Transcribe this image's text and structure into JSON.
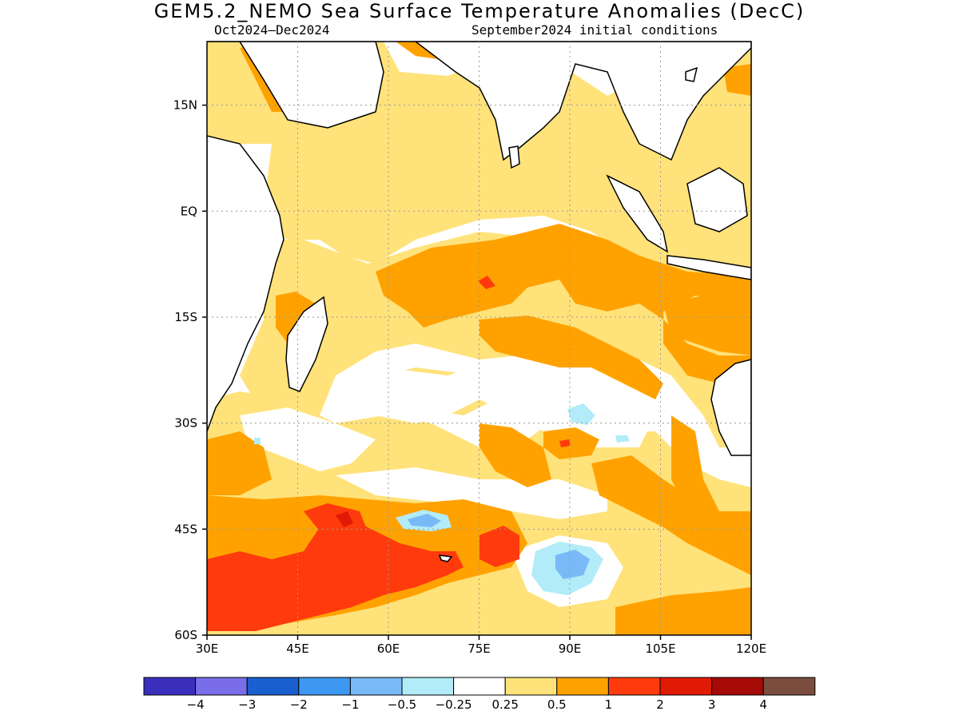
{
  "title": "GEM5.2_NEMO Sea Surface Temperature Anomalies (DecC)",
  "period": "Oct2024–Dec2024",
  "initial_conditions": "September2024 initial conditions",
  "map": {
    "lon_range": [
      30,
      120
    ],
    "lat_range": [
      -60,
      24
    ],
    "lon_ticks": [
      {
        "value": 30,
        "label": "30E"
      },
      {
        "value": 45,
        "label": "45E"
      },
      {
        "value": 60,
        "label": "60E"
      },
      {
        "value": 75,
        "label": "75E"
      },
      {
        "value": 90,
        "label": "90E"
      },
      {
        "value": 105,
        "label": "105E"
      },
      {
        "value": 120,
        "label": "120E"
      }
    ],
    "lat_ticks": [
      {
        "value": 15,
        "label": "15N"
      },
      {
        "value": 0,
        "label": "EQ"
      },
      {
        "value": -15,
        "label": "15S"
      },
      {
        "value": -30,
        "label": "30S"
      },
      {
        "value": -45,
        "label": "45S"
      },
      {
        "value": -60,
        "label": "60S"
      }
    ],
    "grid": true,
    "coastline_color": "#000000"
  },
  "colorbar": {
    "colors": [
      "#3a2fbd",
      "#7a6de8",
      "#1a5fd0",
      "#3d98f2",
      "#79b9f7",
      "#b2ecf8",
      "#ffffff",
      "#ffe27a",
      "#ffa200",
      "#ff3b0d",
      "#e01a05",
      "#a50a06",
      "#7b4d3e"
    ],
    "labels": [
      "−4",
      "−3",
      "−2",
      "−1",
      "−0.5",
      "−0.25",
      "0.25",
      "0.5",
      "1",
      "2",
      "3",
      "4"
    ]
  }
}
